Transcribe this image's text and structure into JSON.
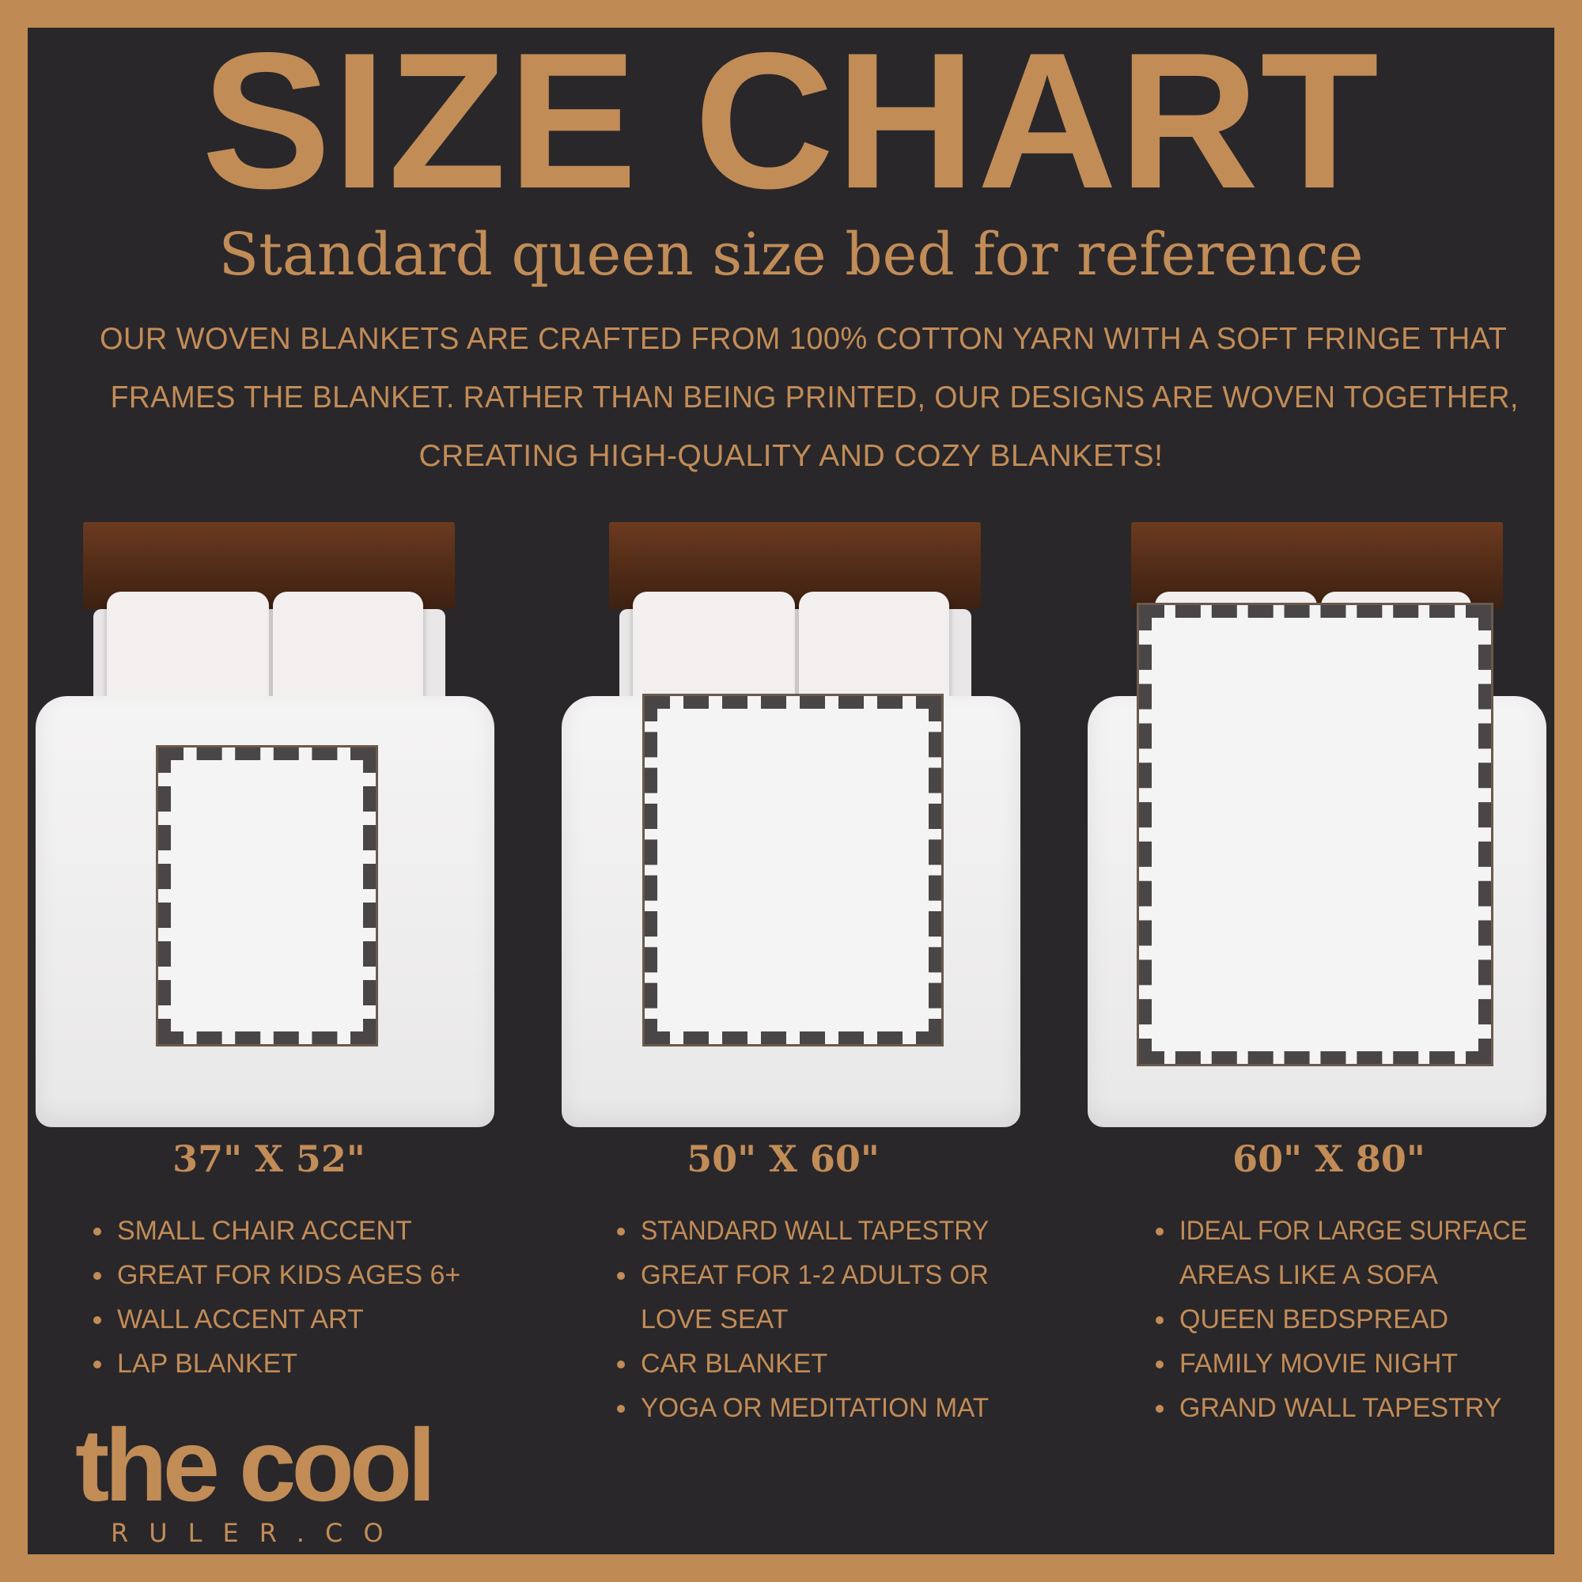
{
  "title": "SIZE CHART",
  "subtitle": "Standard queen size bed for reference",
  "description": [
    "Our woven blankets are crafted from 100% cotton yarn with a soft fringe that",
    "frames the blanket. Rather than being printed, our designs are woven together,",
    "creating high-quality and cozy blankets!"
  ],
  "colors": {
    "border": "#c08a55",
    "background": "#29272a",
    "accent": "#c28c57"
  },
  "sizes": [
    {
      "label": "37\" X 52\"",
      "bullets": [
        "SMALL CHAIR ACCENT",
        "GREAT FOR KIDS AGES 6+",
        "WALL ACCENT ART",
        "LAP BLANKET"
      ]
    },
    {
      "label": "50\" X 60\"",
      "bullets": [
        "STANDARD WALL TAPESTRY",
        "GREAT FOR 1-2 ADULTS OR",
        "LOVE SEAT",
        "CAR BLANKET",
        "YOGA OR MEDITATION MAT"
      ]
    },
    {
      "label": "60\" X 80\"",
      "bullets": [
        "IDEAL FOR LARGE SURFACE",
        "AREAS LIKE A SOFA",
        "QUEEN BEDSPREAD",
        "FAMILY MOVIE NIGHT",
        "GRAND WALL TAPESTRY"
      ]
    }
  ],
  "logo": {
    "line1": "the cool",
    "line2": "RULER.CO"
  }
}
